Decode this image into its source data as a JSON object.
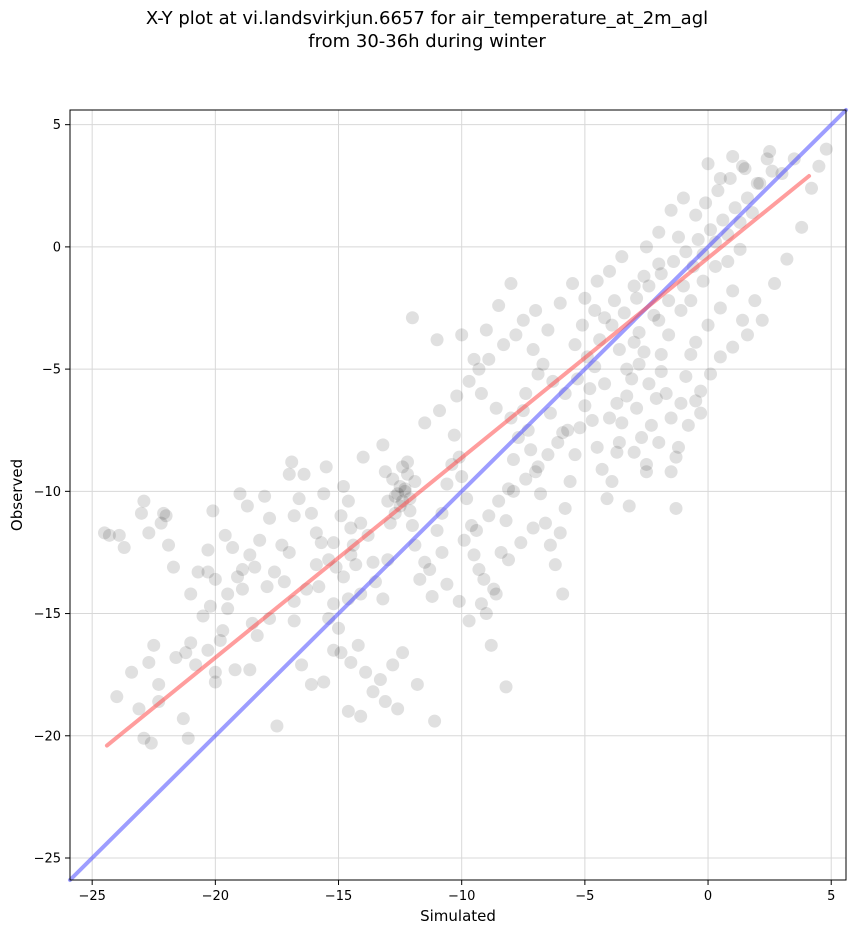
{
  "chart_data": {
    "type": "scatter",
    "title": "X-Y plot at vi.landsvirkjun.6657 for air_temperature_at_2m_agl",
    "subtitle": "from 30-36h during winter",
    "xlabel": "Simulated",
    "ylabel": "Observed",
    "xlim": [
      -25.9,
      5.6
    ],
    "ylim": [
      -25.9,
      5.6
    ],
    "xticks": [
      -25,
      -20,
      -15,
      -10,
      -5,
      0,
      5
    ],
    "yticks": [
      -25,
      -20,
      -15,
      -10,
      -5,
      0,
      5
    ],
    "xtick_labels": [
      "−25",
      "−20",
      "−15",
      "−10",
      "−5",
      "0",
      "5"
    ],
    "ytick_labels": [
      "−25",
      "−20",
      "−15",
      "−10",
      "−5",
      "0",
      "5"
    ],
    "grid": true,
    "point_color": "#000000",
    "fit_line_color": "#ff4d4d",
    "identity_line_color": "#4d4dff",
    "fit_line": {
      "x": [
        -24.4,
        4.1
      ],
      "y": [
        -20.4,
        2.9
      ]
    },
    "identity_line": {
      "x": [
        -25.9,
        5.6
      ],
      "y": [
        -25.9,
        5.6
      ]
    },
    "points": [
      [
        -24.5,
        -11.7
      ],
      [
        -23.7,
        -12.3
      ],
      [
        -23.9,
        -11.8
      ],
      [
        -22.9,
        -10.4
      ],
      [
        -23.0,
        -10.9
      ],
      [
        -22.7,
        -11.7
      ],
      [
        -22.1,
        -10.9
      ],
      [
        -22.2,
        -11.3
      ],
      [
        -21.9,
        -12.2
      ],
      [
        -21.7,
        -13.1
      ],
      [
        -23.4,
        -17.4
      ],
      [
        -23.1,
        -18.9
      ],
      [
        -22.9,
        -20.1
      ],
      [
        -22.6,
        -20.3
      ],
      [
        -22.3,
        -17.9
      ],
      [
        -22.7,
        -17.0
      ],
      [
        -22.5,
        -16.3
      ],
      [
        -24.0,
        -18.4
      ],
      [
        -21.2,
        -16.6
      ],
      [
        -21.3,
        -19.3
      ],
      [
        -21.1,
        -20.1
      ],
      [
        -20.8,
        -17.1
      ],
      [
        -20.3,
        -16.5
      ],
      [
        -20.0,
        -17.4
      ],
      [
        -20.0,
        -17.8
      ],
      [
        -21.0,
        -14.2
      ],
      [
        -20.7,
        -13.3
      ],
      [
        -20.3,
        -13.3
      ],
      [
        -20.0,
        -13.6
      ],
      [
        -19.5,
        -14.8
      ],
      [
        -19.7,
        -15.7
      ],
      [
        -20.2,
        -14.7
      ],
      [
        -20.3,
        -12.4
      ],
      [
        -20.1,
        -10.8
      ],
      [
        -19.6,
        -11.8
      ],
      [
        -19.3,
        -12.3
      ],
      [
        -19.1,
        -13.5
      ],
      [
        -18.9,
        -14.0
      ],
      [
        -18.6,
        -12.6
      ],
      [
        -18.4,
        -13.1
      ],
      [
        -18.7,
        -10.6
      ],
      [
        -18.0,
        -10.2
      ],
      [
        -17.8,
        -11.1
      ],
      [
        -17.6,
        -13.3
      ],
      [
        -17.2,
        -13.7
      ],
      [
        -17.0,
        -12.5
      ],
      [
        -16.8,
        -11.0
      ],
      [
        -16.9,
        -8.8
      ],
      [
        -16.4,
        -9.3
      ],
      [
        -16.6,
        -10.3
      ],
      [
        -16.1,
        -10.9
      ],
      [
        -15.9,
        -11.7
      ],
      [
        -15.7,
        -12.1
      ],
      [
        -15.6,
        -10.1
      ],
      [
        -15.4,
        -12.8
      ],
      [
        -15.8,
        -13.9
      ],
      [
        -15.1,
        -13.1
      ],
      [
        -14.9,
        -11.0
      ],
      [
        -14.8,
        -9.8
      ],
      [
        -14.6,
        -10.4
      ],
      [
        -14.5,
        -11.5
      ],
      [
        -14.4,
        -12.2
      ],
      [
        -14.3,
        -13.0
      ],
      [
        -14.1,
        -14.2
      ],
      [
        -14.6,
        -14.4
      ],
      [
        -15.0,
        -15.6
      ],
      [
        -15.2,
        -14.6
      ],
      [
        -14.9,
        -16.6
      ],
      [
        -14.5,
        -17.0
      ],
      [
        -14.2,
        -16.3
      ],
      [
        -13.9,
        -17.4
      ],
      [
        -13.6,
        -18.2
      ],
      [
        -13.3,
        -17.7
      ],
      [
        -13.1,
        -18.6
      ],
      [
        -12.8,
        -17.1
      ],
      [
        -12.6,
        -18.9
      ],
      [
        -12.4,
        -16.6
      ],
      [
        -11.8,
        -17.9
      ],
      [
        -11.1,
        -19.4
      ],
      [
        -14.6,
        -19.0
      ],
      [
        -14.1,
        -19.2
      ],
      [
        -15.6,
        -17.8
      ],
      [
        -17.5,
        -19.6
      ],
      [
        -17.8,
        -15.2
      ],
      [
        -18.3,
        -15.9
      ],
      [
        -18.6,
        -17.3
      ],
      [
        -19.2,
        -17.3
      ],
      [
        -16.8,
        -15.3
      ],
      [
        -16.5,
        -17.1
      ],
      [
        -16.1,
        -17.9
      ],
      [
        -15.4,
        -15.2
      ],
      [
        -15.2,
        -16.5
      ],
      [
        -13.5,
        -13.7
      ],
      [
        -13.2,
        -14.4
      ],
      [
        -13.0,
        -12.8
      ],
      [
        -12.9,
        -11.3
      ],
      [
        -12.7,
        -10.9
      ],
      [
        -12.6,
        -10.1
      ],
      [
        -12.5,
        -9.8
      ],
      [
        -12.4,
        -10.4
      ],
      [
        -12.3,
        -10.0
      ],
      [
        -12.2,
        -9.3
      ],
      [
        -12.1,
        -10.8
      ],
      [
        -12.0,
        -11.4
      ],
      [
        -11.9,
        -12.2
      ],
      [
        -11.7,
        -13.6
      ],
      [
        -11.5,
        -12.9
      ],
      [
        -11.2,
        -14.3
      ],
      [
        -11.0,
        -11.6
      ],
      [
        -10.8,
        -10.9
      ],
      [
        -10.6,
        -9.7
      ],
      [
        -10.4,
        -8.9
      ],
      [
        -10.3,
        -7.7
      ],
      [
        -10.1,
        -8.6
      ],
      [
        -10.0,
        -9.4
      ],
      [
        -9.8,
        -10.3
      ],
      [
        -9.6,
        -11.4
      ],
      [
        -9.5,
        -12.6
      ],
      [
        -9.3,
        -13.2
      ],
      [
        -9.2,
        -14.6
      ],
      [
        -9.0,
        -15.0
      ],
      [
        -8.8,
        -16.3
      ],
      [
        -8.6,
        -14.2
      ],
      [
        -8.4,
        -12.5
      ],
      [
        -8.2,
        -11.2
      ],
      [
        -8.1,
        -9.9
      ],
      [
        -7.9,
        -8.7
      ],
      [
        -7.7,
        -7.8
      ],
      [
        -7.5,
        -6.7
      ],
      [
        -7.3,
        -7.5
      ],
      [
        -7.2,
        -8.3
      ],
      [
        -7.0,
        -9.2
      ],
      [
        -6.8,
        -10.1
      ],
      [
        -6.6,
        -11.3
      ],
      [
        -6.4,
        -12.2
      ],
      [
        -6.2,
        -13.0
      ],
      [
        -6.0,
        -11.7
      ],
      [
        -5.8,
        -10.7
      ],
      [
        -5.6,
        -9.6
      ],
      [
        -5.4,
        -8.5
      ],
      [
        -5.2,
        -7.4
      ],
      [
        -5.0,
        -6.5
      ],
      [
        -4.8,
        -5.8
      ],
      [
        -4.7,
        -7.1
      ],
      [
        -4.5,
        -8.2
      ],
      [
        -4.3,
        -9.1
      ],
      [
        -4.1,
        -10.3
      ],
      [
        -3.9,
        -9.6
      ],
      [
        -3.7,
        -8.4
      ],
      [
        -3.5,
        -7.2
      ],
      [
        -3.3,
        -6.1
      ],
      [
        -3.1,
        -5.4
      ],
      [
        -2.9,
        -6.6
      ],
      [
        -2.7,
        -7.8
      ],
      [
        -2.5,
        -8.9
      ],
      [
        -2.3,
        -7.3
      ],
      [
        -2.1,
        -6.2
      ],
      [
        -1.9,
        -5.1
      ],
      [
        -1.7,
        -6.0
      ],
      [
        -1.5,
        -7.0
      ],
      [
        -1.3,
        -8.6
      ],
      [
        -1.1,
        -6.4
      ],
      [
        -0.9,
        -5.3
      ],
      [
        -0.7,
        -4.4
      ],
      [
        -0.5,
        -6.3
      ],
      [
        -0.3,
        -5.9
      ],
      [
        -5.9,
        -14.2
      ],
      [
        -3.2,
        -10.6
      ],
      [
        -8.2,
        -18.0
      ],
      [
        -1.3,
        -10.7
      ],
      [
        -10.0,
        -3.6
      ],
      [
        -11.0,
        -3.8
      ],
      [
        -12.0,
        -2.9
      ],
      [
        -9.5,
        -4.6
      ],
      [
        -9.0,
        -3.4
      ],
      [
        -8.5,
        -2.4
      ],
      [
        -8.0,
        -1.5
      ],
      [
        -7.5,
        -3.0
      ],
      [
        -7.0,
        -2.6
      ],
      [
        -6.5,
        -3.4
      ],
      [
        -6.0,
        -2.3
      ],
      [
        -5.5,
        -1.5
      ],
      [
        -5.0,
        -2.1
      ],
      [
        -4.5,
        -1.4
      ],
      [
        -4.0,
        -1.0
      ],
      [
        -3.5,
        -0.4
      ],
      [
        -3.0,
        -1.6
      ],
      [
        -2.5,
        0.0
      ],
      [
        -2.0,
        0.6
      ],
      [
        -1.5,
        1.5
      ],
      [
        -1.0,
        2.0
      ],
      [
        -0.5,
        1.3
      ],
      [
        0.0,
        3.4
      ],
      [
        0.5,
        2.8
      ],
      [
        1.0,
        3.7
      ],
      [
        1.5,
        3.2
      ],
      [
        2.0,
        2.6
      ],
      [
        2.5,
        3.9
      ],
      [
        3.0,
        3.0
      ],
      [
        3.5,
        3.6
      ],
      [
        -24.3,
        -11.8
      ],
      [
        -22.0,
        -11.0
      ],
      [
        -19.0,
        -10.1
      ],
      [
        -17.0,
        -9.3
      ],
      [
        -15.5,
        -9.0
      ],
      [
        -14.0,
        -8.6
      ],
      [
        -13.2,
        -8.1
      ],
      [
        -11.5,
        -7.2
      ],
      [
        -10.9,
        -6.7
      ],
      [
        -10.2,
        -6.1
      ],
      [
        -9.7,
        -5.5
      ],
      [
        -9.3,
        -5.0
      ],
      [
        -8.9,
        -4.6
      ],
      [
        -8.3,
        -4.0
      ],
      [
        -7.8,
        -3.6
      ],
      [
        -7.1,
        -4.2
      ],
      [
        -6.7,
        -4.8
      ],
      [
        -6.3,
        -5.5
      ],
      [
        -5.8,
        -6.0
      ],
      [
        -5.3,
        -5.4
      ],
      [
        -4.9,
        -4.5
      ],
      [
        -4.4,
        -3.8
      ],
      [
        -3.9,
        -3.2
      ],
      [
        -3.4,
        -2.7
      ],
      [
        -2.9,
        -2.1
      ],
      [
        -2.4,
        -1.6
      ],
      [
        -1.9,
        -1.1
      ],
      [
        -1.4,
        -0.6
      ],
      [
        -0.9,
        -0.2
      ],
      [
        -0.4,
        0.3
      ],
      [
        0.1,
        0.7
      ],
      [
        0.6,
        1.1
      ],
      [
        1.1,
        1.6
      ],
      [
        1.6,
        2.0
      ],
      [
        2.1,
        2.6
      ],
      [
        2.6,
        3.1
      ],
      [
        -3.6,
        -4.2
      ],
      [
        -2.8,
        -3.5
      ],
      [
        -2.2,
        -2.8
      ],
      [
        -1.6,
        -2.2
      ],
      [
        -1.0,
        -1.6
      ],
      [
        -0.6,
        -0.8
      ],
      [
        -0.2,
        -0.3
      ],
      [
        0.3,
        0.2
      ],
      [
        0.8,
        0.5
      ],
      [
        1.3,
        1.0
      ],
      [
        1.8,
        1.4
      ],
      [
        -2.6,
        -1.2
      ],
      [
        -2.0,
        -0.7
      ],
      [
        -1.2,
        0.4
      ],
      [
        -0.1,
        1.8
      ],
      [
        0.4,
        2.3
      ],
      [
        0.9,
        2.8
      ],
      [
        1.4,
        3.3
      ],
      [
        2.4,
        3.6
      ],
      [
        -4.6,
        -2.6
      ],
      [
        -4.2,
        -2.9
      ],
      [
        -3.8,
        -2.2
      ],
      [
        -3.0,
        -3.9
      ],
      [
        -2.6,
        -4.3
      ],
      [
        -2.0,
        -3.0
      ],
      [
        -1.6,
        -3.6
      ],
      [
        -1.1,
        -2.6
      ],
      [
        -0.7,
        -2.2
      ],
      [
        -0.2,
        -1.4
      ],
      [
        0.3,
        -0.8
      ],
      [
        0.8,
        -0.6
      ],
      [
        1.3,
        -0.1
      ],
      [
        1.0,
        -1.8
      ],
      [
        0.5,
        -2.5
      ],
      [
        0.0,
        -3.2
      ],
      [
        -0.5,
        -3.9
      ],
      [
        1.4,
        -3.0
      ],
      [
        1.9,
        -2.2
      ],
      [
        -9.2,
        -6.0
      ],
      [
        -8.6,
        -6.6
      ],
      [
        -8.0,
        -7.0
      ],
      [
        -7.4,
        -6.0
      ],
      [
        -6.9,
        -5.2
      ],
      [
        -6.4,
        -6.8
      ],
      [
        -5.9,
        -7.6
      ],
      [
        -5.4,
        -4.0
      ],
      [
        -5.1,
        -3.2
      ],
      [
        -4.6,
        -4.9
      ],
      [
        -4.2,
        -5.6
      ],
      [
        -3.7,
        -6.4
      ],
      [
        -3.3,
        -5.0
      ],
      [
        -2.8,
        -4.8
      ],
      [
        -2.4,
        -5.6
      ],
      [
        -1.9,
        -4.4
      ],
      [
        -13.0,
        -10.4
      ],
      [
        -12.7,
        -10.2
      ],
      [
        -12.5,
        -10.6
      ],
      [
        -12.3,
        -9.9
      ],
      [
        -12.1,
        -10.3
      ],
      [
        -11.9,
        -9.6
      ],
      [
        -12.8,
        -9.5
      ],
      [
        -12.4,
        -9.0
      ],
      [
        -13.1,
        -9.2
      ],
      [
        -12.2,
        -8.8
      ],
      [
        -14.1,
        -11.3
      ],
      [
        -13.8,
        -11.8
      ],
      [
        -14.5,
        -12.6
      ],
      [
        -15.2,
        -12.1
      ],
      [
        -14.8,
        -13.5
      ],
      [
        -13.6,
        -12.9
      ],
      [
        -15.9,
        -13.0
      ],
      [
        -16.3,
        -14.0
      ],
      [
        -16.8,
        -14.5
      ],
      [
        -17.3,
        -12.2
      ],
      [
        -17.9,
        -13.9
      ],
      [
        -18.2,
        -12.0
      ],
      [
        -18.9,
        -13.2
      ],
      [
        -19.5,
        -14.2
      ],
      [
        -20.5,
        -15.1
      ],
      [
        -21.0,
        -16.2
      ],
      [
        -21.6,
        -16.8
      ],
      [
        -22.3,
        -18.6
      ],
      [
        -19.8,
        -16.1
      ],
      [
        -18.5,
        -15.4
      ],
      [
        -9.9,
        -12.0
      ],
      [
        -9.4,
        -11.6
      ],
      [
        -8.9,
        -11.0
      ],
      [
        -8.5,
        -10.4
      ],
      [
        -7.9,
        -10.0
      ],
      [
        -7.4,
        -9.5
      ],
      [
        -6.9,
        -9.0
      ],
      [
        -6.5,
        -8.5
      ],
      [
        -6.1,
        -8.0
      ],
      [
        -5.7,
        -7.5
      ],
      [
        -10.8,
        -12.5
      ],
      [
        -11.3,
        -13.2
      ],
      [
        -10.6,
        -13.8
      ],
      [
        -10.1,
        -14.5
      ],
      [
        -9.7,
        -15.3
      ],
      [
        -9.1,
        -13.6
      ],
      [
        -8.7,
        -14.0
      ],
      [
        -8.1,
        -12.8
      ],
      [
        -7.6,
        -12.1
      ],
      [
        -7.1,
        -11.5
      ],
      [
        -4.0,
        -7.0
      ],
      [
        -3.6,
        -8.0
      ],
      [
        -3.0,
        -8.4
      ],
      [
        -2.5,
        -9.2
      ],
      [
        -2.0,
        -8.0
      ],
      [
        -1.5,
        -9.2
      ],
      [
        -1.2,
        -8.2
      ],
      [
        -0.8,
        -7.3
      ],
      [
        -0.3,
        -6.8
      ],
      [
        0.1,
        -5.2
      ],
      [
        0.5,
        -4.5
      ],
      [
        1.0,
        -4.1
      ],
      [
        1.6,
        -3.6
      ],
      [
        2.2,
        -3.0
      ],
      [
        2.7,
        -1.5
      ],
      [
        3.2,
        -0.5
      ],
      [
        3.8,
        0.8
      ],
      [
        4.2,
        2.4
      ],
      [
        4.5,
        3.3
      ],
      [
        4.8,
        4.0
      ]
    ]
  }
}
